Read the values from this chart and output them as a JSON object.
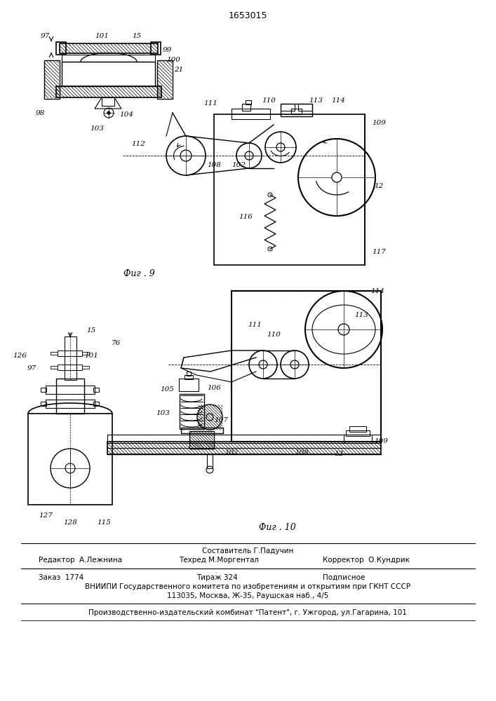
{
  "patent_number": "1653015",
  "fig9_label": "Фиг . 9",
  "fig10_label": "Фиг . 10",
  "editor_line": "Редактор  А.Лежнина",
  "composer_line1": "Составитель Г.Падучин",
  "composer_line2": "Техред М.Моргентал",
  "corrector_line": "Корректор  О.Кундрик",
  "order_line": "Заказ  1774",
  "tirazh_line": "Тираж 324",
  "podpisnoe_line": "Подписное",
  "vniiipi_line1": "ВНИИПИ Государственного комитета по изобретениям и открытиям при ГКНТ СССР",
  "vniiipi_line2": "113035, Москва, Ж-35, Раушская наб., 4/5",
  "factory_line": "Производственно-издательский комбинат \"Патент\", г. Ужгород, ул.Гагарина, 101",
  "bg_color": "#ffffff"
}
